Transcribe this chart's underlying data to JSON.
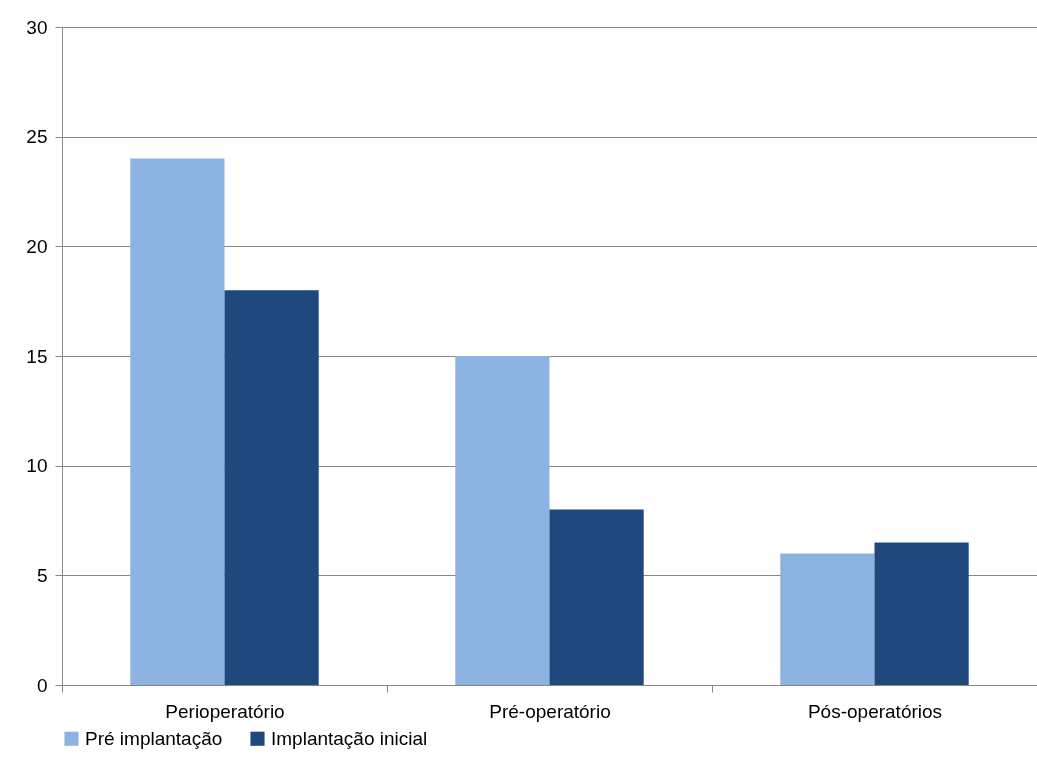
{
  "chart_data": {
    "type": "bar",
    "categories": [
      "Perioperatório",
      "Pré-operatório",
      "Pós-operatórios"
    ],
    "series": [
      {
        "name": "Pré implantação",
        "color": "#8db3e2",
        "values": [
          24,
          15,
          6
        ]
      },
      {
        "name": "Implantação inicial",
        "color": "#1f497d",
        "values": [
          18,
          8,
          6.5
        ]
      }
    ],
    "ylim": [
      0,
      30
    ],
    "yticks": [
      0,
      5,
      10,
      15,
      20,
      25,
      30
    ],
    "grid": "y",
    "legend": "bottom"
  }
}
